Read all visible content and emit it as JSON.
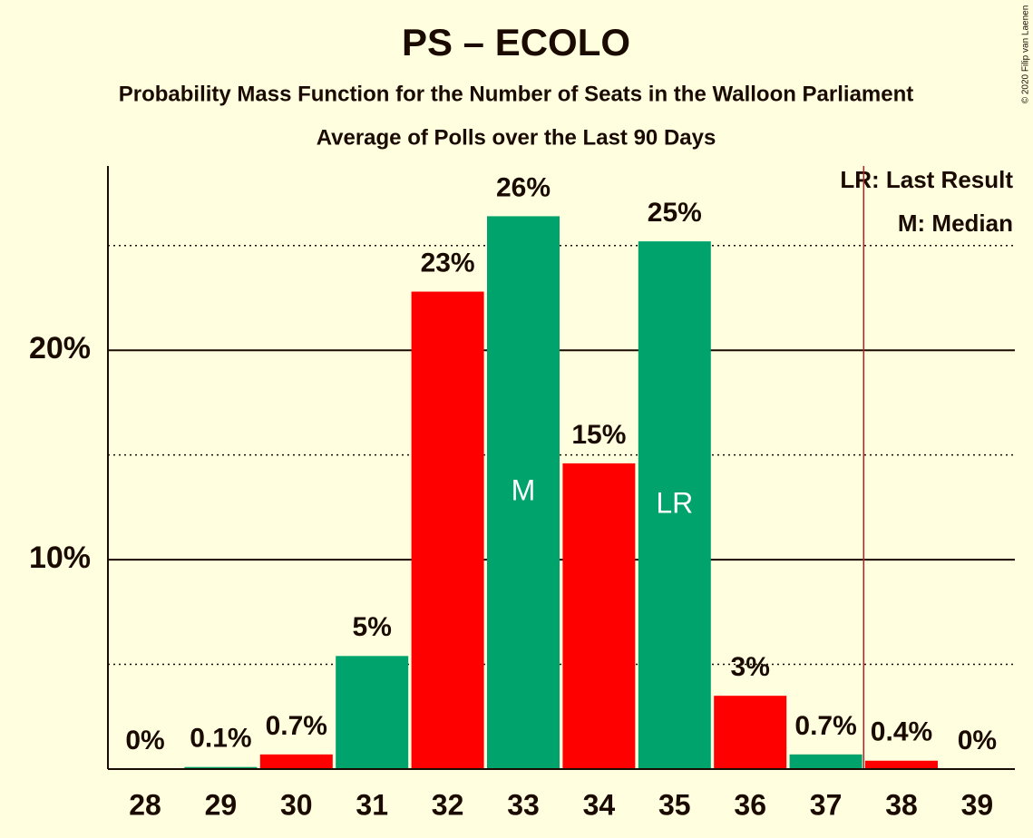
{
  "chart_data": {
    "type": "bar",
    "title": "PS – ECOLO",
    "subtitle": "Probability Mass Function for the Number of Seats in the Walloon Parliament",
    "subtitle2": "Average of Polls over the Last 90 Days",
    "copyright": "© 2020 Filip van Laenen",
    "categories": [
      "28",
      "29",
      "30",
      "31",
      "32",
      "33",
      "34",
      "35",
      "36",
      "37",
      "38",
      "39"
    ],
    "values": [
      0,
      0.1,
      0.7,
      5.4,
      22.8,
      26.4,
      14.6,
      25.2,
      3.5,
      0.7,
      0.4,
      0
    ],
    "value_labels": [
      "0%",
      "0.1%",
      "0.7%",
      "5%",
      "23%",
      "26%",
      "15%",
      "25%",
      "3%",
      "0.7%",
      "0.4%",
      "0%"
    ],
    "colors": [
      "#ff0000",
      "#00a36c",
      "#ff0000",
      "#00a36c",
      "#ff0000",
      "#00a36c",
      "#ff0000",
      "#00a36c",
      "#ff0000",
      "#00a36c",
      "#ff0000",
      "#00a36c"
    ],
    "ylim": [
      0,
      28.8
    ],
    "yticks": [
      {
        "value": 10,
        "label": "10%"
      },
      {
        "value": 20,
        "label": "20%"
      }
    ],
    "minor_yticks": [
      5,
      15,
      25
    ],
    "bar_annotations": [
      {
        "category": "33",
        "label": "M"
      },
      {
        "category": "35",
        "label": "LR"
      }
    ],
    "threshold_line": 37.5,
    "threshold_color": "#b22222",
    "legend": [
      "LR: Last Result",
      "M: Median"
    ]
  }
}
